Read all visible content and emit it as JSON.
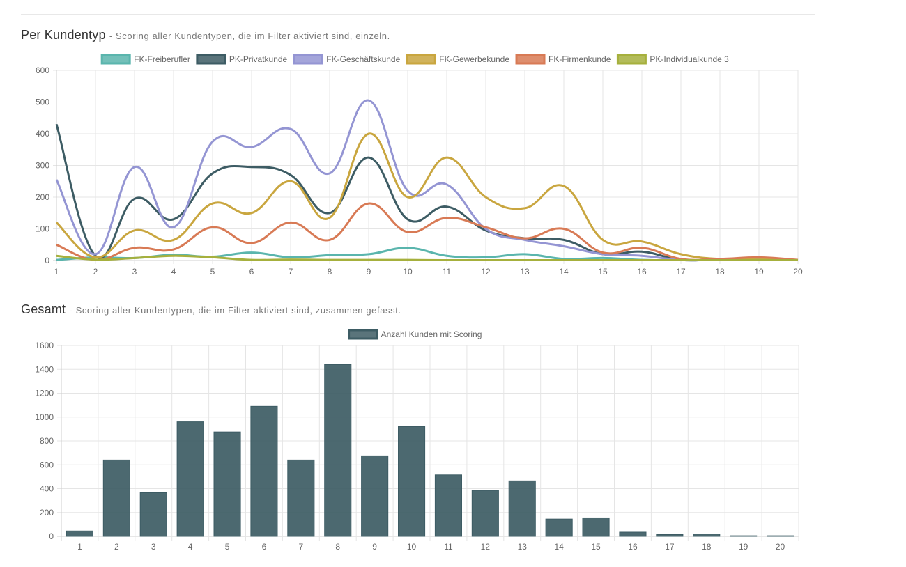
{
  "sections": {
    "per_type": {
      "title": "Per Kundentyp",
      "subtitle": "- Scoring aller Kundentypen, die im Filter aktiviert sind, einzeln."
    },
    "total": {
      "title": "Gesamt",
      "subtitle": "- Scoring aller Kundentypen, die im Filter aktiviert sind, zusammen gefasst."
    }
  },
  "chart_data": [
    {
      "type": "line",
      "x": [
        1,
        2,
        3,
        4,
        5,
        6,
        7,
        8,
        9,
        10,
        11,
        12,
        13,
        14,
        15,
        16,
        17,
        18,
        19,
        20
      ],
      "ylim": [
        0,
        600
      ],
      "yticks": [
        0,
        100,
        200,
        300,
        400,
        500,
        600
      ],
      "grid": true,
      "legend_position": "top",
      "series": [
        {
          "name": "FK-Freiberufler",
          "color": "#5ab5ad",
          "values": [
            2,
            10,
            8,
            18,
            12,
            25,
            10,
            17,
            20,
            40,
            15,
            10,
            20,
            5,
            8,
            2,
            1,
            1,
            1,
            1
          ]
        },
        {
          "name": "PK-Privatkunde",
          "color": "#3d5c64",
          "values": [
            430,
            15,
            195,
            130,
            275,
            295,
            270,
            150,
            325,
            130,
            170,
            95,
            70,
            65,
            20,
            28,
            2,
            5,
            5,
            2
          ]
        },
        {
          "name": "FK-Geschäftskunde",
          "color": "#9495d3",
          "values": [
            255,
            20,
            295,
            105,
            375,
            358,
            415,
            275,
            505,
            220,
            240,
            100,
            65,
            45,
            20,
            15,
            2,
            2,
            2,
            2
          ]
        },
        {
          "name": "FK-Gewerbekunde",
          "color": "#c9a63f",
          "values": [
            120,
            10,
            95,
            65,
            180,
            150,
            250,
            135,
            400,
            200,
            325,
            200,
            165,
            235,
            65,
            60,
            20,
            5,
            8,
            2
          ]
        },
        {
          "name": "FK-Firmenkunde",
          "color": "#d87a55",
          "values": [
            50,
            2,
            40,
            35,
            105,
            55,
            120,
            65,
            180,
            90,
            135,
            105,
            70,
            100,
            25,
            40,
            5,
            5,
            10,
            2
          ]
        },
        {
          "name": "PK-Individualkunde 3",
          "color": "#a6b03d",
          "values": [
            15,
            3,
            8,
            15,
            10,
            2,
            3,
            2,
            2,
            2,
            1,
            1,
            1,
            1,
            1,
            1,
            1,
            1,
            1,
            1
          ]
        }
      ]
    },
    {
      "type": "bar",
      "categories": [
        "1",
        "2",
        "3",
        "4",
        "5",
        "6",
        "7",
        "8",
        "9",
        "10",
        "11",
        "12",
        "13",
        "14",
        "15",
        "16",
        "17",
        "18",
        "19",
        "20"
      ],
      "ylim": [
        0,
        1600
      ],
      "yticks": [
        0,
        200,
        400,
        600,
        800,
        1000,
        1200,
        1400,
        1600
      ],
      "grid": true,
      "legend_position": "top",
      "series": [
        {
          "name": "Anzahl Kunden mit Scoring",
          "color": "#3d5c64",
          "values": [
            45,
            640,
            365,
            960,
            875,
            1090,
            640,
            1440,
            675,
            920,
            515,
            385,
            465,
            145,
            155,
            35,
            15,
            20,
            5,
            5
          ]
        }
      ]
    }
  ]
}
